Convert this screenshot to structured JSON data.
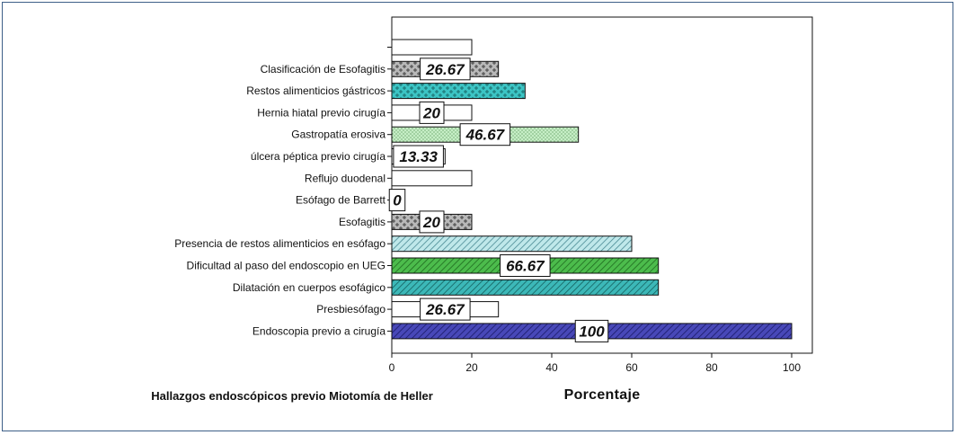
{
  "chart_data": {
    "type": "bar",
    "orientation": "horizontal",
    "title": "Hallazgos endoscópicos previo Miotomía de Heller",
    "xlabel": "Porcentaje",
    "xlim": [
      0,
      105
    ],
    "xticks": [
      0,
      20,
      40,
      60,
      80,
      100
    ],
    "categories": [
      "",
      "Clasificación de  Esofagitis",
      "Restos alimenticios gástricos",
      "Hernia hiatal previo cirugía",
      "Gastropatía erosiva",
      "úlcera péptica previo cirugía",
      "Reflujo duodenal",
      "Esófago de Barrett",
      "Esofagitis",
      "Presencia de restos alimenticios  en esófago",
      "Dificultad al paso del endoscopio en UEG",
      "Dilatación en cuerpos esofágico",
      "Presbiesófago",
      "Endoscopia previo a cirugía"
    ],
    "values": [
      20,
      26.67,
      33.33,
      20,
      46.67,
      13.33,
      20,
      0,
      20,
      60,
      66.67,
      66.67,
      26.67,
      100
    ],
    "data_labels": [
      "",
      "26.67",
      "",
      "20",
      "46.67",
      "13.33",
      "",
      "0",
      "20",
      "",
      "66.67",
      "",
      "26.67",
      "100"
    ],
    "colors": {
      "white": "#ffffff",
      "gray_cross": "#b8b8b8",
      "teal_cross": "#3cc4c4",
      "light_green_dots": "#c6eec6",
      "light_teal_hatch": "#bfe8ea",
      "green_hatch": "#4cbc4c",
      "teal_hatch": "#3cb8b8",
      "blue_hatch": "#4848b8",
      "frame": "#3d5f88"
    },
    "bar_styles": [
      "white",
      "gray_cross",
      "teal_cross",
      "white",
      "light_green_dots",
      "white",
      "white",
      "white",
      "gray_cross",
      "light_teal_hatch",
      "green_hatch",
      "teal_hatch",
      "white",
      "blue_hatch"
    ],
    "grid": false,
    "legend": "none"
  }
}
